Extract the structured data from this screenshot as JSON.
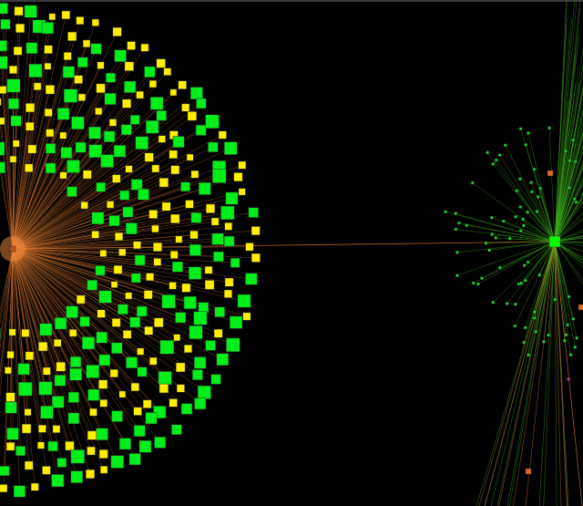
{
  "graph": {
    "background": "#000000",
    "colors": {
      "hub_left": "#f08a3c",
      "hub_right": "#00ff00",
      "node_green": "#00ee1a",
      "node_yellow": "#ffee00",
      "edge_orange": "#e07a30",
      "edge_green": "#3aa81a",
      "node_orange": "#e06a20",
      "node_magenta": "#cc33aa"
    },
    "clusters": [
      {
        "id": "left-cluster",
        "hub_color": "#f08a3c"
      },
      {
        "id": "right-cluster",
        "hub_color": "#00ff00"
      }
    ]
  }
}
